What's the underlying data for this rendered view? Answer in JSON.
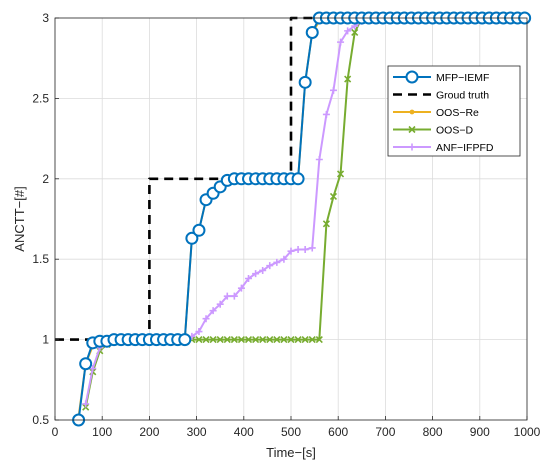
{
  "chart_data": {
    "type": "line",
    "xlabel": "Time−[s]",
    "ylabel": "ANCTT−[#]",
    "xlim": [
      0,
      1000
    ],
    "ylim": [
      0.5,
      3
    ],
    "xticks": [
      0,
      100,
      200,
      300,
      400,
      500,
      600,
      700,
      800,
      900,
      1000
    ],
    "xtick_labels": [
      "0",
      "100",
      "200",
      "300",
      "400",
      "500",
      "600",
      "700",
      "800",
      "900",
      "1000"
    ],
    "yticks": [
      0.5,
      1,
      1.5,
      2,
      2.5,
      3
    ],
    "ytick_labels": [
      "0.5",
      "1",
      "1.5",
      "2",
      "2.5",
      "3"
    ],
    "grid": true,
    "legend_position": "upper-right",
    "series": [
      {
        "name": "MFP−IEMF",
        "color": "#0072bd",
        "marker": "circle",
        "dashed": false,
        "x": [
          50,
          65,
          80,
          95,
          110,
          125,
          140,
          155,
          170,
          185,
          200,
          215,
          230,
          245,
          260,
          275,
          290,
          305,
          320,
          335,
          350,
          365,
          380,
          395,
          410,
          425,
          440,
          455,
          470,
          485,
          500,
          515,
          530,
          545,
          560,
          575,
          590,
          605,
          620,
          635,
          650,
          665,
          680,
          695,
          710,
          725,
          740,
          755,
          770,
          785,
          800,
          815,
          830,
          845,
          860,
          875,
          890,
          905,
          920,
          935,
          950,
          965,
          980,
          995
        ],
        "y": [
          0.5,
          0.85,
          0.98,
          0.99,
          0.99,
          1,
          1,
          1,
          1,
          1,
          1,
          1,
          1,
          1,
          1,
          1,
          1.63,
          1.68,
          1.87,
          1.91,
          1.95,
          1.99,
          2,
          2,
          2,
          2,
          2,
          2,
          2,
          2,
          2,
          2,
          2.6,
          2.91,
          3,
          3,
          3,
          3,
          3,
          3,
          3,
          3,
          3,
          3,
          3,
          3,
          3,
          3,
          3,
          3,
          3,
          3,
          3,
          3,
          3,
          3,
          3,
          3,
          3,
          3,
          3,
          3,
          3,
          3
        ]
      },
      {
        "name": "Groud truth",
        "color": "#000000",
        "marker": "none",
        "dashed": true,
        "x": [
          0,
          200,
          200,
          500,
          500,
          600,
          600,
          1000
        ],
        "y": [
          1,
          1,
          2,
          2,
          3,
          3,
          3,
          3
        ]
      },
      {
        "name": "OOS−Re",
        "color": "#edb120",
        "marker": "dot",
        "dashed": false,
        "x": [
          50,
          65,
          80,
          95,
          110,
          125,
          140,
          155,
          170,
          185,
          200,
          215,
          230,
          245,
          260,
          275,
          290,
          305,
          320,
          335,
          350,
          365,
          380,
          395,
          410,
          425,
          440,
          455,
          470,
          485,
          500,
          515,
          530,
          545,
          560,
          575,
          590,
          605,
          620,
          635,
          650,
          665,
          680,
          695,
          710,
          725,
          740,
          755,
          770,
          785,
          800,
          815,
          830,
          845,
          860,
          875,
          890,
          905,
          920,
          935,
          950,
          965,
          980,
          995
        ],
        "y": [
          0.52,
          0.85,
          0.96,
          0.98,
          1,
          1,
          1,
          1,
          1,
          1,
          1,
          1,
          1,
          1,
          1,
          1,
          1.63,
          1.68,
          1.87,
          1.91,
          1.95,
          1.99,
          2,
          2,
          2,
          2,
          2,
          2,
          2,
          2,
          2,
          2,
          2.6,
          2.91,
          2.98,
          3,
          3,
          3,
          3,
          3,
          3,
          3,
          3,
          3,
          3,
          3,
          3,
          3,
          3,
          3,
          3,
          3,
          3,
          3,
          3,
          3,
          3,
          3,
          3,
          3,
          3,
          3,
          3,
          3
        ]
      },
      {
        "name": "OOS−D",
        "color": "#77ac30",
        "marker": "x",
        "dashed": false,
        "x": [
          65,
          80,
          95,
          110,
          125,
          140,
          155,
          170,
          185,
          200,
          215,
          230,
          245,
          260,
          275,
          290,
          305,
          320,
          335,
          350,
          365,
          380,
          395,
          410,
          425,
          440,
          455,
          470,
          485,
          500,
          515,
          530,
          545,
          560,
          575,
          590,
          605,
          620,
          635,
          650,
          665,
          680,
          695,
          710,
          725,
          740,
          755,
          770,
          785,
          800,
          815,
          830,
          845,
          860,
          875,
          890,
          905,
          920,
          935,
          950,
          965,
          980,
          995
        ],
        "y": [
          0.58,
          0.8,
          0.93,
          0.97,
          0.99,
          1,
          1,
          1,
          1,
          1,
          1,
          1,
          1,
          1,
          1,
          1,
          1,
          1,
          1,
          1,
          1,
          1,
          1,
          1,
          1,
          1,
          1,
          1,
          1,
          1,
          1,
          1,
          1,
          1,
          1.72,
          1.89,
          2.03,
          2.62,
          2.91,
          3,
          3,
          3,
          3,
          3,
          3,
          3,
          3,
          3,
          3,
          3,
          3,
          3,
          3,
          3,
          3,
          3,
          3,
          3,
          3,
          3,
          3,
          3,
          3
        ]
      },
      {
        "name": "ANF−IFPFD",
        "color": "#cc99ff",
        "marker": "plus",
        "dashed": false,
        "x": [
          65,
          80,
          95,
          110,
          125,
          140,
          155,
          170,
          185,
          200,
          215,
          230,
          245,
          260,
          275,
          290,
          305,
          320,
          335,
          350,
          365,
          380,
          395,
          410,
          425,
          440,
          455,
          470,
          485,
          500,
          515,
          530,
          545,
          560,
          575,
          590,
          605,
          620,
          635,
          650,
          665,
          680,
          695,
          710,
          725,
          740,
          755,
          770,
          785,
          800,
          815,
          830,
          845,
          860,
          875,
          890,
          905,
          920,
          935,
          950,
          965,
          980,
          995
        ],
        "y": [
          0.6,
          0.82,
          0.95,
          0.98,
          0.99,
          1,
          1,
          1,
          1,
          1,
          1,
          1,
          1,
          1,
          1,
          1.02,
          1.05,
          1.13,
          1.18,
          1.22,
          1.27,
          1.27,
          1.32,
          1.38,
          1.41,
          1.43,
          1.46,
          1.48,
          1.5,
          1.55,
          1.56,
          1.56,
          1.57,
          2.12,
          2.4,
          2.55,
          2.85,
          2.92,
          2.95,
          2.98,
          3,
          3,
          3,
          3,
          3,
          3,
          3,
          3,
          3,
          3,
          3,
          3,
          3,
          3,
          3,
          3,
          3,
          3,
          3,
          3,
          3,
          3,
          3
        ]
      }
    ]
  }
}
